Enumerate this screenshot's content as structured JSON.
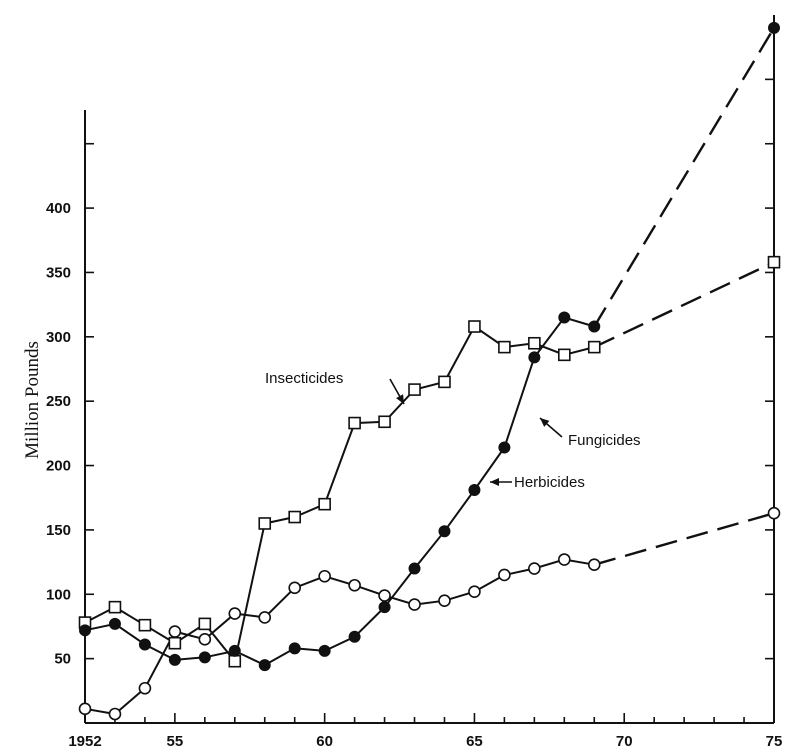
{
  "chart_data": {
    "type": "line",
    "title": "",
    "xlabel": "",
    "ylabel": "Million Pounds",
    "xlim": [
      1952,
      1975
    ],
    "ylim": [
      0,
      550
    ],
    "x_ticks": [
      1952,
      1953,
      1954,
      1955,
      1956,
      1957,
      1958,
      1959,
      1960,
      1961,
      1962,
      1963,
      1964,
      1965,
      1966,
      1967,
      1968,
      1969,
      1970,
      1971,
      1972,
      1973,
      1974,
      1975
    ],
    "x_tick_labels": [
      {
        "value": 1952,
        "label": "1952"
      },
      {
        "value": 1955,
        "label": "55"
      },
      {
        "value": 1960,
        "label": "60"
      },
      {
        "value": 1965,
        "label": "65"
      },
      {
        "value": 1970,
        "label": "70"
      },
      {
        "value": 1975,
        "label": "75"
      }
    ],
    "y_ticks": [
      50,
      100,
      150,
      200,
      250,
      300,
      350,
      400,
      450,
      500
    ],
    "y_tick_labels": [
      {
        "value": 50,
        "label": "50"
      },
      {
        "value": 100,
        "label": "100"
      },
      {
        "value": 150,
        "label": "150"
      },
      {
        "value": 200,
        "label": "200"
      },
      {
        "value": 250,
        "label": "250"
      },
      {
        "value": 300,
        "label": "300"
      },
      {
        "value": 350,
        "label": "350"
      },
      {
        "value": 400,
        "label": "400"
      }
    ],
    "grid": false,
    "series": [
      {
        "name": "Insecticides",
        "marker": "square-open",
        "color": "#111111",
        "points": [
          [
            1952,
            78
          ],
          [
            1953,
            90
          ],
          [
            1954,
            76
          ],
          [
            1955,
            62
          ],
          [
            1956,
            77
          ],
          [
            1957,
            48
          ],
          [
            1958,
            155
          ],
          [
            1959,
            160
          ],
          [
            1960,
            170
          ],
          [
            1961,
            233
          ],
          [
            1962,
            234
          ],
          [
            1963,
            259
          ],
          [
            1964,
            265
          ],
          [
            1965,
            308
          ],
          [
            1966,
            292
          ],
          [
            1967,
            295
          ],
          [
            1968,
            286
          ],
          [
            1969,
            292
          ]
        ],
        "projection": [
          [
            1969,
            292
          ],
          [
            1975,
            358
          ]
        ]
      },
      {
        "name": "Herbicides",
        "marker": "circle-filled",
        "color": "#111111",
        "points": [
          [
            1952,
            72
          ],
          [
            1953,
            77
          ],
          [
            1954,
            61
          ],
          [
            1955,
            49
          ],
          [
            1956,
            51
          ],
          [
            1957,
            56
          ],
          [
            1958,
            45
          ],
          [
            1959,
            58
          ],
          [
            1960,
            56
          ],
          [
            1961,
            67
          ],
          [
            1962,
            90
          ],
          [
            1963,
            120
          ],
          [
            1964,
            149
          ],
          [
            1965,
            181
          ],
          [
            1966,
            214
          ],
          [
            1967,
            284
          ],
          [
            1968,
            315
          ],
          [
            1969,
            308
          ]
        ],
        "projection": [
          [
            1969,
            308
          ],
          [
            1975,
            540
          ]
        ]
      },
      {
        "name": "Fungicides",
        "marker": "circle-open",
        "color": "#111111",
        "points": [
          [
            1952,
            11
          ],
          [
            1953,
            7
          ],
          [
            1954,
            27
          ],
          [
            1955,
            71
          ],
          [
            1956,
            65
          ],
          [
            1957,
            85
          ],
          [
            1958,
            82
          ],
          [
            1959,
            105
          ],
          [
            1960,
            114
          ],
          [
            1961,
            107
          ],
          [
            1962,
            99
          ],
          [
            1963,
            92
          ],
          [
            1964,
            95
          ],
          [
            1965,
            102
          ],
          [
            1966,
            115
          ],
          [
            1967,
            120
          ],
          [
            1968,
            127
          ],
          [
            1969,
            123
          ]
        ],
        "projection": [
          [
            1969,
            123
          ],
          [
            1975,
            163
          ]
        ]
      }
    ],
    "annotations": [
      {
        "text": "Insecticides",
        "series": "Insecticides"
      },
      {
        "text": "Herbicides",
        "series": "Herbicides"
      },
      {
        "text": "Fungicides",
        "series": "Fungicides"
      }
    ]
  }
}
